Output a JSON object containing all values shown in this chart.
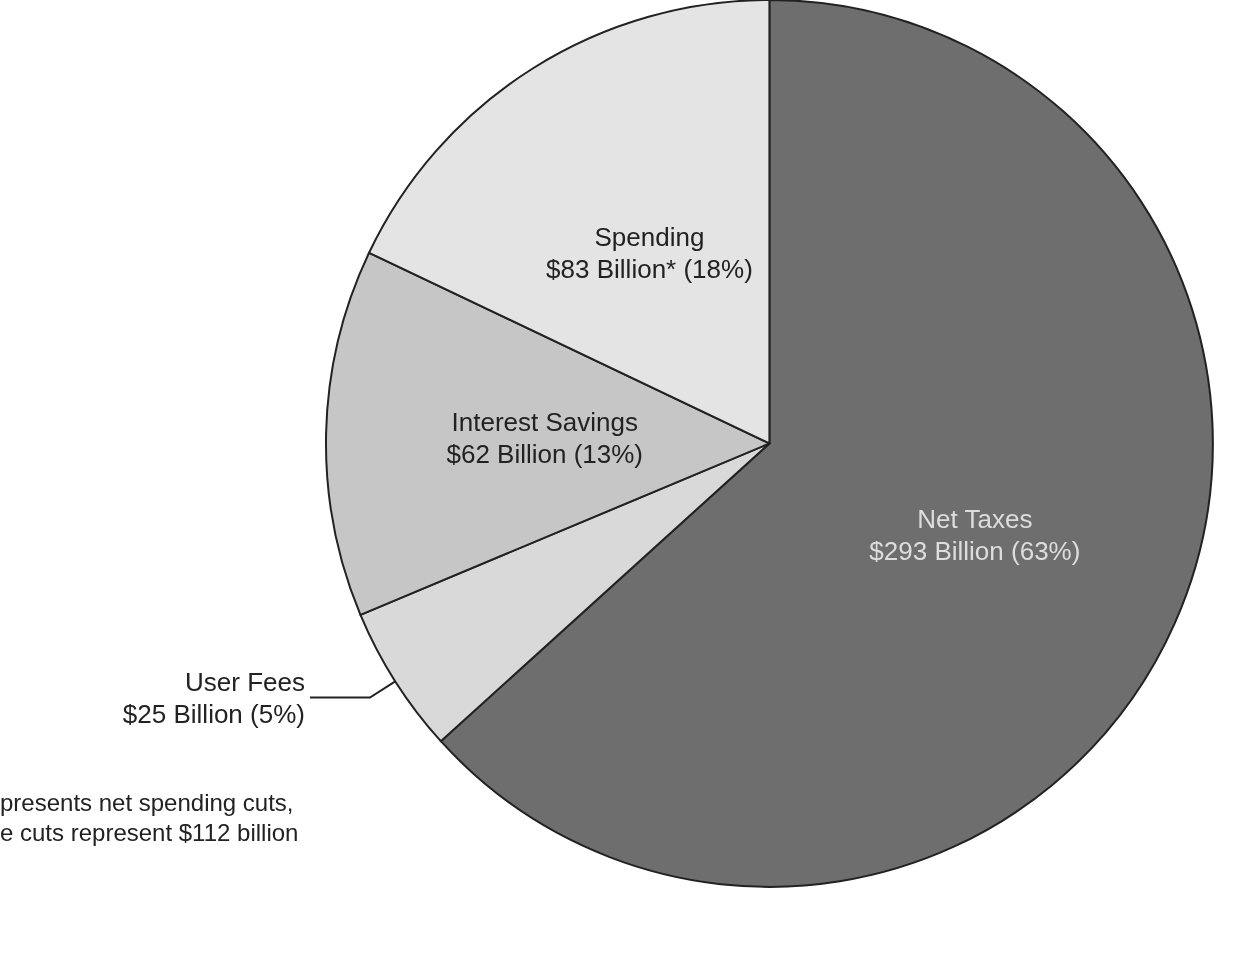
{
  "chart_data": {
    "type": "pie",
    "categories": [
      "Net Taxes",
      "User Fees",
      "Interest Savings",
      "Spending"
    ],
    "values": [
      293,
      25,
      62,
      83
    ],
    "colors": [
      "#6e6e6e",
      "#d9d9d9",
      "#c6c6c6",
      "#e4e4e4"
    ],
    "value_labels": [
      "$293 Billion (63%)",
      "$25 Billion (5%)",
      "$62 Billion (13%)",
      "$83 Billion* (18%)"
    ],
    "annotations": [
      "presents net spending cuts,",
      "e cuts represent $112 billion"
    ]
  }
}
